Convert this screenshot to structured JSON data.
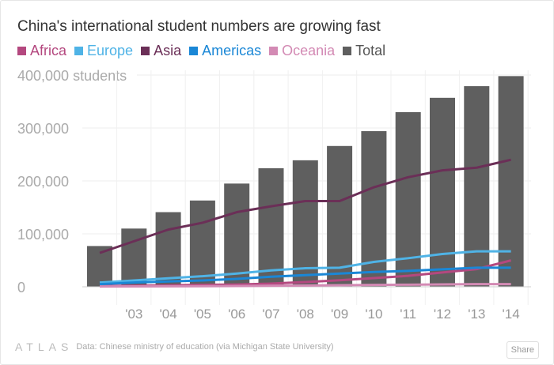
{
  "chart_data": {
    "type": "bar",
    "title": "China's international student numbers are growing fast",
    "ylabel": "students",
    "y_top_label": "400,000 students",
    "ylim": [
      0,
      420000
    ],
    "yticks": [
      0,
      100000,
      200000,
      300000,
      400000
    ],
    "ytick_labels": [
      "0",
      "100,000",
      "200,000",
      "300,000",
      "400,000 students"
    ],
    "x": [
      2002,
      2003,
      2004,
      2005,
      2006,
      2007,
      2008,
      2009,
      2010,
      2011,
      2012,
      2013,
      2014
    ],
    "xtick_labels": [
      "",
      "'03",
      "'04",
      "'05",
      "'06",
      "'07",
      "'08",
      "'09",
      "'10",
      "'11",
      "'12",
      "'13",
      "'14"
    ],
    "grid": true,
    "legend_position": "top-left",
    "bars": {
      "name": "Total",
      "color": "#5f5f5f",
      "values": [
        77000,
        110000,
        141000,
        163000,
        195000,
        224000,
        239000,
        266000,
        294000,
        330000,
        357000,
        379000,
        398000
      ]
    },
    "series": [
      {
        "name": "Africa",
        "color": "#b4487f",
        "values": [
          1500,
          2000,
          2800,
          3700,
          4300,
          6000,
          9000,
          12400,
          16400,
          20700,
          27000,
          33400,
          49800
        ]
      },
      {
        "name": "Europe",
        "color": "#4fb3e6",
        "values": [
          8000,
          12000,
          16000,
          20000,
          25000,
          31000,
          35000,
          36000,
          47000,
          54000,
          62000,
          67000,
          67000
        ]
      },
      {
        "name": "Asia",
        "color": "#6b2f57",
        "values": [
          64000,
          86000,
          108000,
          121000,
          141000,
          152000,
          162000,
          162000,
          188000,
          207000,
          220000,
          225000,
          240000
        ]
      },
      {
        "name": "Americas",
        "color": "#1a87d6",
        "values": [
          5000,
          8000,
          10000,
          12000,
          15000,
          19000,
          22000,
          25000,
          28000,
          30000,
          33000,
          36000,
          36000
        ]
      },
      {
        "name": "Oceania",
        "color": "#d38ab4",
        "values": [
          500,
          800,
          1000,
          1200,
          1500,
          2000,
          2500,
          3000,
          3500,
          4000,
          4500,
          5000,
          5000
        ]
      }
    ],
    "legend": [
      "Africa",
      "Europe",
      "Asia",
      "Americas",
      "Oceania",
      "Total"
    ]
  },
  "footer": {
    "logo": "ATLAS",
    "source": "Data:  Chinese ministry of education (via Michigan State University)",
    "share": "Share"
  }
}
